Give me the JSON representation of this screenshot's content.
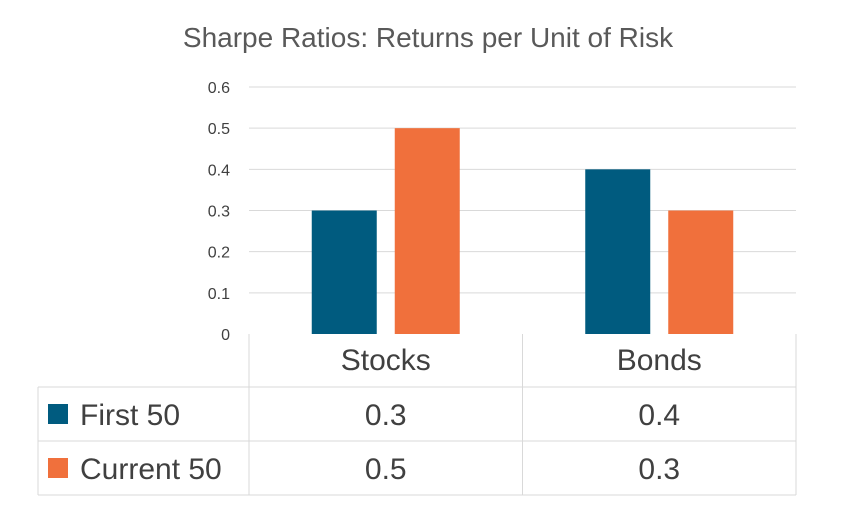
{
  "chart_data": {
    "type": "bar",
    "title": "Sharpe Ratios:  Returns per Unit of Risk",
    "xlabel": "",
    "ylabel": "",
    "categories": [
      "Stocks",
      "Bonds"
    ],
    "series": [
      {
        "name": "First 50",
        "values": [
          0.3,
          0.4
        ],
        "color": "#005B7F"
      },
      {
        "name": "Current 50",
        "values": [
          0.5,
          0.3
        ],
        "color": "#F0703C"
      }
    ],
    "ylim": [
      0,
      0.6
    ],
    "yticks": [
      "0",
      "0.1",
      "0.2",
      "0.3",
      "0.4",
      "0.5",
      "0.6"
    ],
    "data_table_values": [
      [
        "0.3",
        "0.4"
      ],
      [
        "0.5",
        "0.3"
      ]
    ],
    "grid": true,
    "legend": "data-table"
  }
}
